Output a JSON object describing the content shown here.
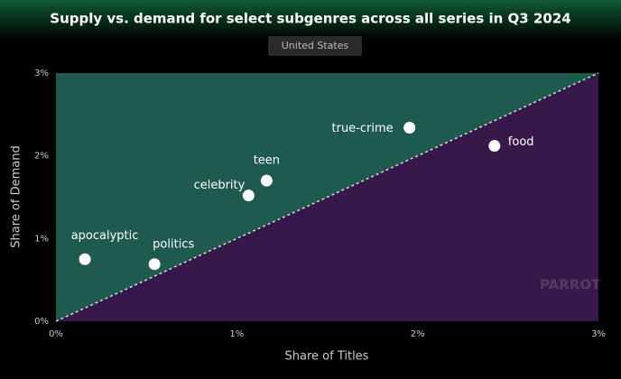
{
  "chart_data": {
    "type": "scatter",
    "title": "Supply vs. demand for select subgenres across all series in Q3 2024",
    "subtitle": "United States",
    "x_label": "Share of Titles",
    "y_label": "Share of Demand",
    "watermark": "PARROT",
    "xlim": [
      0,
      3
    ],
    "ylim": [
      0,
      3
    ],
    "xticks": [
      {
        "value": 0,
        "label": "0%"
      },
      {
        "value": 1,
        "label": "1%"
      },
      {
        "value": 2,
        "label": "2%"
      },
      {
        "value": 3,
        "label": "3%"
      }
    ],
    "yticks": [
      {
        "value": 0,
        "label": "0%"
      },
      {
        "value": 1,
        "label": "1%"
      },
      {
        "value": 2,
        "label": "2%"
      },
      {
        "value": 3,
        "label": "3%"
      }
    ],
    "color": "#ffffff",
    "upper_color": "#1e5a4e",
    "lower_color": "#37184a",
    "points": [
      {
        "label": "apocalyptic",
        "x": 0.16,
        "y": 0.75
      },
      {
        "label": "politics",
        "x": 0.545,
        "y": 0.69
      },
      {
        "label": "celebrity",
        "x": 1.065,
        "y": 1.52
      },
      {
        "label": "teen",
        "x": 1.165,
        "y": 1.7
      },
      {
        "label": "true-crime",
        "x": 1.955,
        "y": 2.34
      },
      {
        "label": "food",
        "x": 2.425,
        "y": 2.12
      }
    ]
  }
}
